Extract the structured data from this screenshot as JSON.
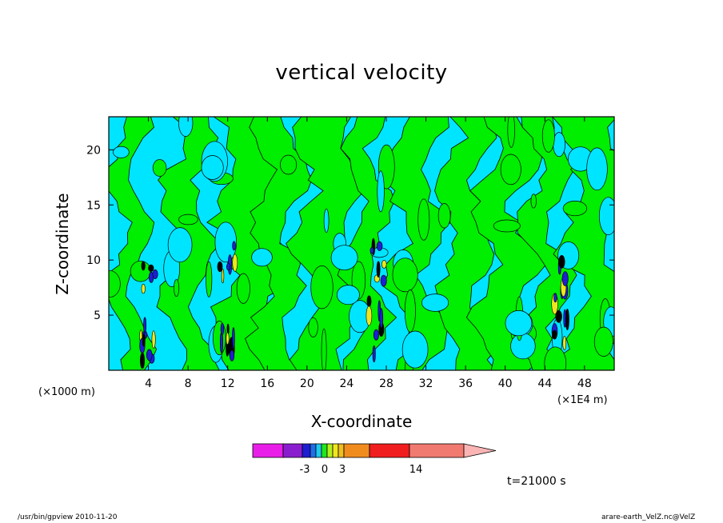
{
  "title": "vertical velocity",
  "footer": {
    "left": "/usr/bin/gpview   2010-11-20",
    "right": "arare-earth_VelZ.nc@VelZ"
  },
  "time_label": "t=21000 s",
  "colors": {
    "background": "#00e5ff",
    "green_band": "#00ee00",
    "colorbar": [
      "#e81ee8",
      "#8a1ecf",
      "#1e1ed2",
      "#1e6ee8",
      "#1ec8f0",
      "#1ee81e",
      "#b4f01e",
      "#f0e61e",
      "#f0be1e",
      "#f08c1e",
      "#f01e1e",
      "#f07a70",
      "#fab4b4"
    ]
  },
  "chart_data": {
    "type": "heatmap",
    "title": "vertical velocity",
    "xlabel": "X-coordinate",
    "ylabel": "Z-coordinate",
    "x_unit_left": "(×1000 m)",
    "x_unit_right": "(×1E4 m)",
    "xlim": [
      0,
      51
    ],
    "ylim": [
      0,
      23
    ],
    "xticks": [
      4,
      8,
      12,
      16,
      20,
      24,
      28,
      32,
      36,
      40,
      44,
      48
    ],
    "yticks": [
      5,
      10,
      15,
      20
    ],
    "colorbar_tick_labels": [
      "-3",
      "0",
      "3",
      "14"
    ],
    "colorbar_tick_values": [
      -3,
      0,
      3,
      14
    ],
    "updraft_columns_x": [
      4,
      12,
      27,
      45.5
    ]
  }
}
